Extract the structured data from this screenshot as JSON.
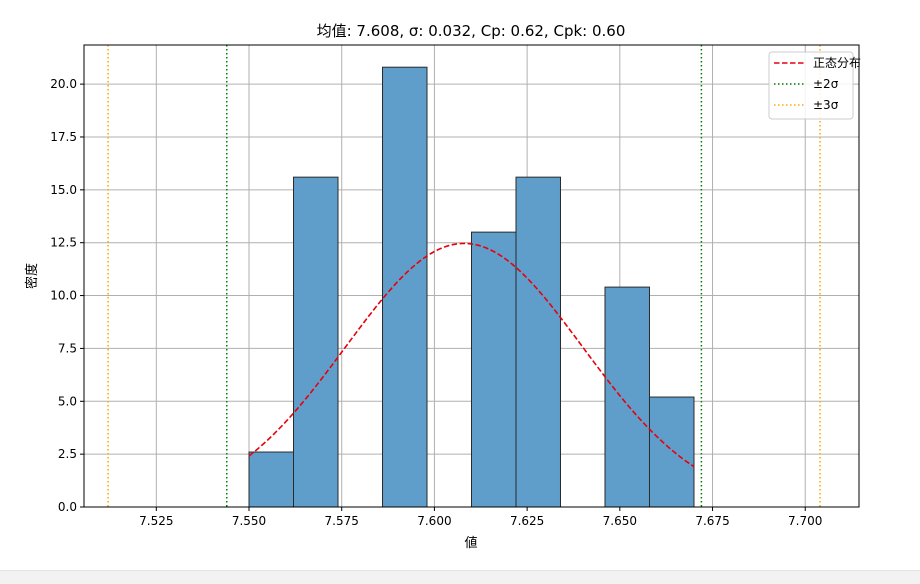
{
  "chart_data": {
    "type": "bar",
    "title": "",
    "subtitle": "均值: 7.608, σ: 0.032, Cp: 0.62, Cpk: 0.60",
    "xlabel": "値",
    "ylabel": "密度",
    "xlim": [
      7.5055,
      7.7145
    ],
    "ylim": [
      0,
      21.85
    ],
    "xticks": [
      "7.525",
      "7.550",
      "7.575",
      "7.600",
      "7.625",
      "7.650",
      "7.675",
      "7.700"
    ],
    "xtick_values": [
      7.525,
      7.55,
      7.575,
      7.6,
      7.625,
      7.65,
      7.675,
      7.7
    ],
    "yticks": [
      "0.0",
      "2.5",
      "5.0",
      "7.5",
      "10.0",
      "12.5",
      "15.0",
      "17.5",
      "20.0"
    ],
    "ytick_values": [
      0,
      2.5,
      5,
      7.5,
      10,
      12.5,
      15,
      17.5,
      20
    ],
    "grid": true,
    "legend_position": "top-right",
    "bins": [
      {
        "x0": 7.55,
        "x1": 7.562,
        "value": 2.6
      },
      {
        "x0": 7.562,
        "x1": 7.574,
        "value": 15.6
      },
      {
        "x0": 7.586,
        "x1": 7.598,
        "value": 20.8
      },
      {
        "x0": 7.61,
        "x1": 7.622,
        "value": 13.0
      },
      {
        "x0": 7.622,
        "x1": 7.634,
        "value": 15.6
      },
      {
        "x0": 7.646,
        "x1": 7.658,
        "value": 10.4
      },
      {
        "x0": 7.658,
        "x1": 7.67,
        "value": 5.2
      }
    ],
    "normal_curve": {
      "name": "正态分布",
      "mean": 7.608,
      "sigma": 0.032,
      "x_range": [
        7.55,
        7.67
      ],
      "color": "#e8000b"
    },
    "sigma_lines": [
      {
        "name": "±2σ",
        "values": [
          7.544,
          7.672
        ],
        "color": "#008000"
      },
      {
        "name": "±3σ",
        "values": [
          7.512,
          7.704
        ],
        "color": "#ffa500"
      }
    ],
    "bar_color": "#5f9ecb"
  }
}
